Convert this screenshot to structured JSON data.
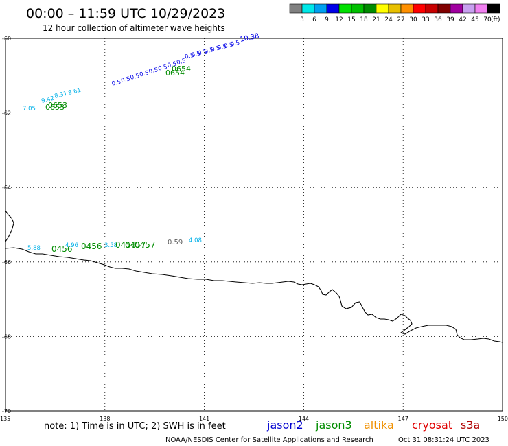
{
  "header": {
    "title": "00:00 – 11:59 UTC 10/29/2023",
    "subtitle": "12 hour collection of altimeter wave heights"
  },
  "legend": {
    "unit": "(ft)",
    "bins": [
      {
        "label": "3",
        "color": "#808080"
      },
      {
        "label": "6",
        "color": "#00e8e8"
      },
      {
        "label": "9",
        "color": "#00a0f0"
      },
      {
        "label": "12",
        "color": "#0000e8"
      },
      {
        "label": "15",
        "color": "#00e000"
      },
      {
        "label": "18",
        "color": "#00c000"
      },
      {
        "label": "21",
        "color": "#008c00"
      },
      {
        "label": "24",
        "color": "#ffff00"
      },
      {
        "label": "27",
        "color": "#e8c000"
      },
      {
        "label": "30",
        "color": "#ff9000"
      },
      {
        "label": "33",
        "color": "#ff0000"
      },
      {
        "label": "36",
        "color": "#c80000"
      },
      {
        "label": "39",
        "color": "#800000"
      },
      {
        "label": "42",
        "color": "#a000a0"
      },
      {
        "label": "45",
        "color": "#c8a0f0"
      },
      {
        "label": "70",
        "color": "#f080f0"
      },
      {
        "label": "",
        "color": "#000000"
      }
    ]
  },
  "axes": {
    "lat_labels": [
      "-60",
      "-62",
      "-64",
      "-66",
      "-68",
      "-70"
    ],
    "lon_labels": [
      "135",
      "138",
      "141",
      "144",
      "147",
      "150"
    ],
    "lat_range": [
      -70,
      -60
    ],
    "lon_range": [
      135,
      150
    ]
  },
  "tracks": {
    "jason2_ne": {
      "color": "#0000e8",
      "labels": [
        "10.38",
        "0.5",
        "0.5",
        "0.5",
        "0.5",
        "0.5",
        "0.5",
        "0.5",
        "0.5"
      ]
    },
    "jason2_mid": {
      "color": "#0000e8",
      "labels": [
        "0.5",
        "0.5",
        "0.5",
        "0.5",
        "0.5",
        "0.5",
        "0.5",
        "0.5"
      ]
    },
    "cyan_sw": {
      "color": "#00b0e8",
      "labels": [
        "7.05",
        "9.42",
        "8.31",
        "8.61"
      ]
    },
    "jason3_north_times": {
      "color": "#008c00",
      "labels": [
        "0654",
        "0654",
        "0653",
        "0653"
      ]
    },
    "south_obs": {
      "cyan_values": [
        "5.88",
        "4.96",
        "4.08",
        "3.58"
      ],
      "gray_value": "0.59",
      "jason3_times": [
        "0456",
        "0456",
        "0456",
        "0457",
        "0457"
      ]
    }
  },
  "footer": {
    "note": "note: 1) Time is in UTC; 2) SWH is in feet",
    "missions": [
      {
        "name": "jason2",
        "color": "#0000d0"
      },
      {
        "name": "jason3",
        "color": "#008c00"
      },
      {
        "name": "altika",
        "color": "#f09000"
      },
      {
        "name": "cryosat",
        "color": "#e00000"
      },
      {
        "name": "s3a",
        "color": "#b00000"
      }
    ],
    "credit": "NOAA/NESDIS Center for Satellite Applications and Research",
    "timestamp": "Oct 31 08:31:24 UTC 2023"
  }
}
